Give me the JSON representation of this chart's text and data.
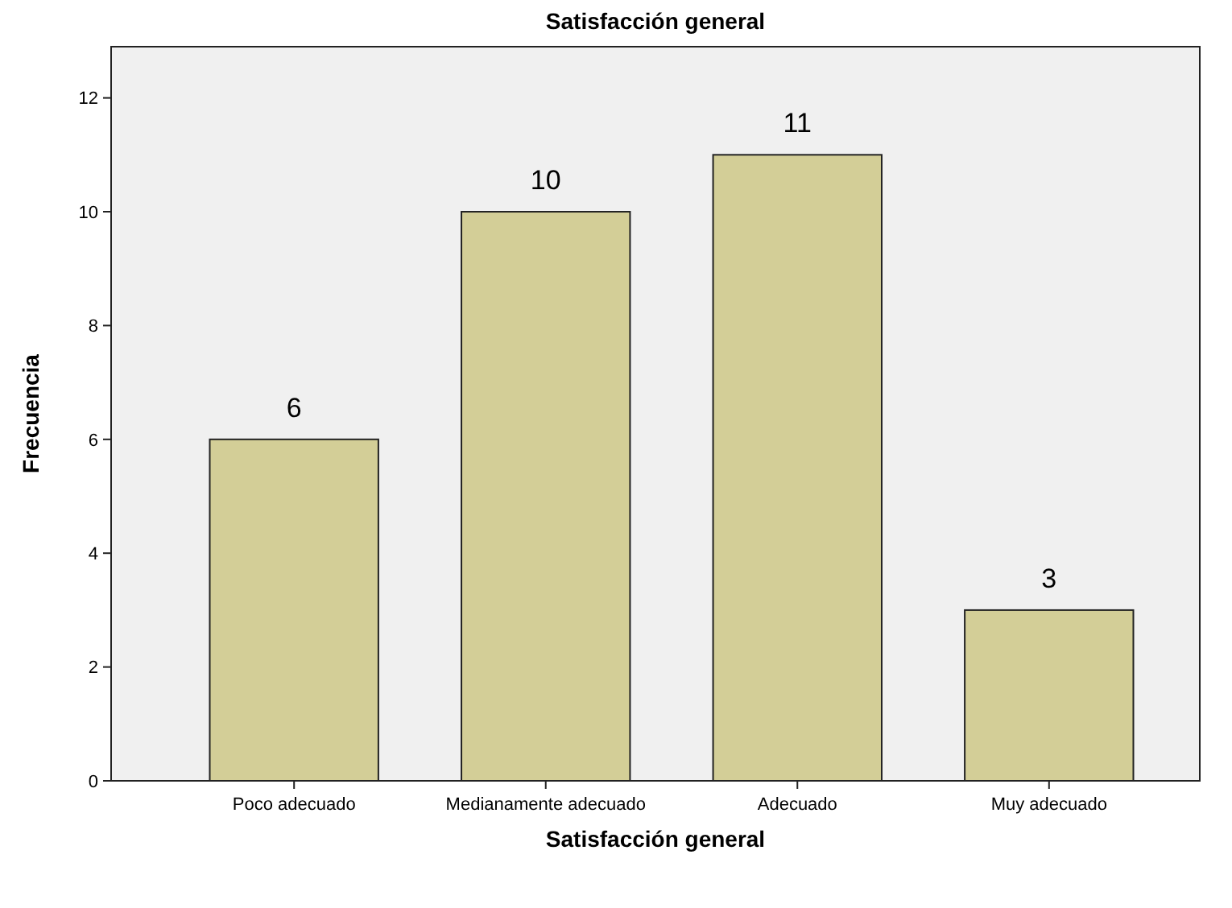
{
  "chart_data": {
    "type": "bar",
    "title": "Satisfacción general",
    "xlabel": "Satisfacción general",
    "ylabel": "Frecuencia",
    "categories": [
      "Poco adecuado",
      "Medianamente adecuado",
      "Adecuado",
      "Muy adecuado"
    ],
    "values": [
      6,
      10,
      11,
      3
    ],
    "color": "#d3ce97",
    "ylim": [
      0,
      12.9
    ],
    "yticks": [
      0,
      2,
      4,
      6,
      8,
      10,
      12
    ],
    "grid": false,
    "data_labels": true
  }
}
